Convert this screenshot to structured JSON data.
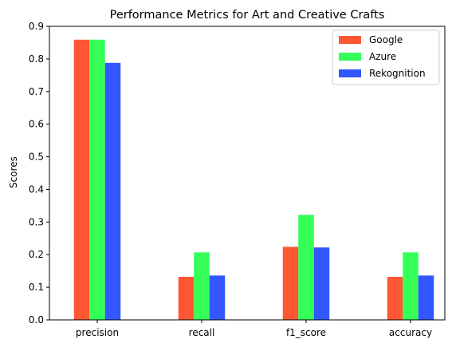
{
  "chart_data": {
    "type": "bar",
    "title": "Performance Metrics for Art and Creative Crafts",
    "xlabel": "",
    "ylabel": "Scores",
    "categories": [
      "precision",
      "recall",
      "f1_score",
      "accuracy"
    ],
    "series": [
      {
        "name": "Google",
        "color": "#ff5733",
        "values": [
          0.859,
          0.132,
          0.224,
          0.132
        ]
      },
      {
        "name": "Azure",
        "color": "#33ff57",
        "values": [
          0.859,
          0.207,
          0.322,
          0.207
        ]
      },
      {
        "name": "Rekognition",
        "color": "#3357ff",
        "values": [
          0.788,
          0.136,
          0.222,
          0.136
        ]
      }
    ],
    "ylim": [
      0,
      0.9
    ],
    "yticks": [
      "0.0",
      "0.1",
      "0.2",
      "0.3",
      "0.4",
      "0.5",
      "0.6",
      "0.7",
      "0.8",
      "0.9"
    ],
    "grid": false,
    "legend_position": "top-right"
  }
}
